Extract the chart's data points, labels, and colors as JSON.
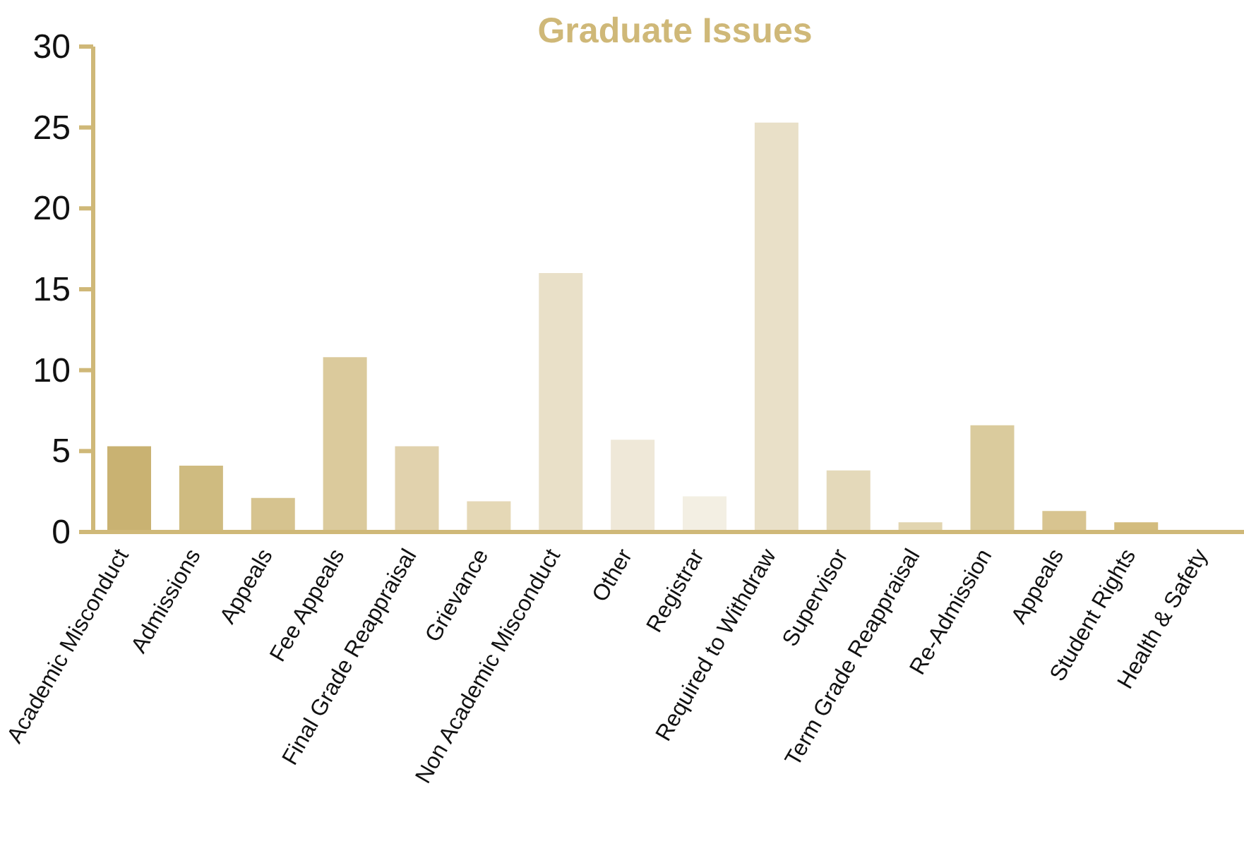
{
  "chart_data": {
    "type": "bar",
    "title": "Graduate Issues",
    "categories": [
      "Academic Misconduct",
      "Admissions",
      "Appeals",
      "Fee Appeals",
      "Final Grade Reappraisal",
      "Grievance",
      "Non Academic Misconduct",
      "Other",
      "Registrar",
      "Required to Withdraw",
      "Supervisor",
      "Term Grade Reappraisal",
      "Re-Admission",
      "Appeals",
      "Student Rights",
      "Health & Safety"
    ],
    "values": [
      5.3,
      4.1,
      2.1,
      10.8,
      5.3,
      1.9,
      16.0,
      5.7,
      2.2,
      25.3,
      3.8,
      0.6,
      6.6,
      1.3,
      0.6,
      0
    ],
    "colors": [
      "#c9b272",
      "#cfbb80",
      "#d6c38f",
      "#dbca9c",
      "#e1d2ad",
      "#e5d8b6",
      "#e9e0c8",
      "#efe8d8",
      "#f3efe3",
      "#e9e0c8",
      "#e4d9ba",
      "#e2d5b0",
      "#dacb9d",
      "#d8c490",
      "#d3bc7e",
      "#cfb878"
    ],
    "ylim": [
      0,
      30
    ],
    "yticks": [
      0,
      5,
      10,
      15,
      20,
      25,
      30
    ],
    "grid": false,
    "legend": false
  }
}
